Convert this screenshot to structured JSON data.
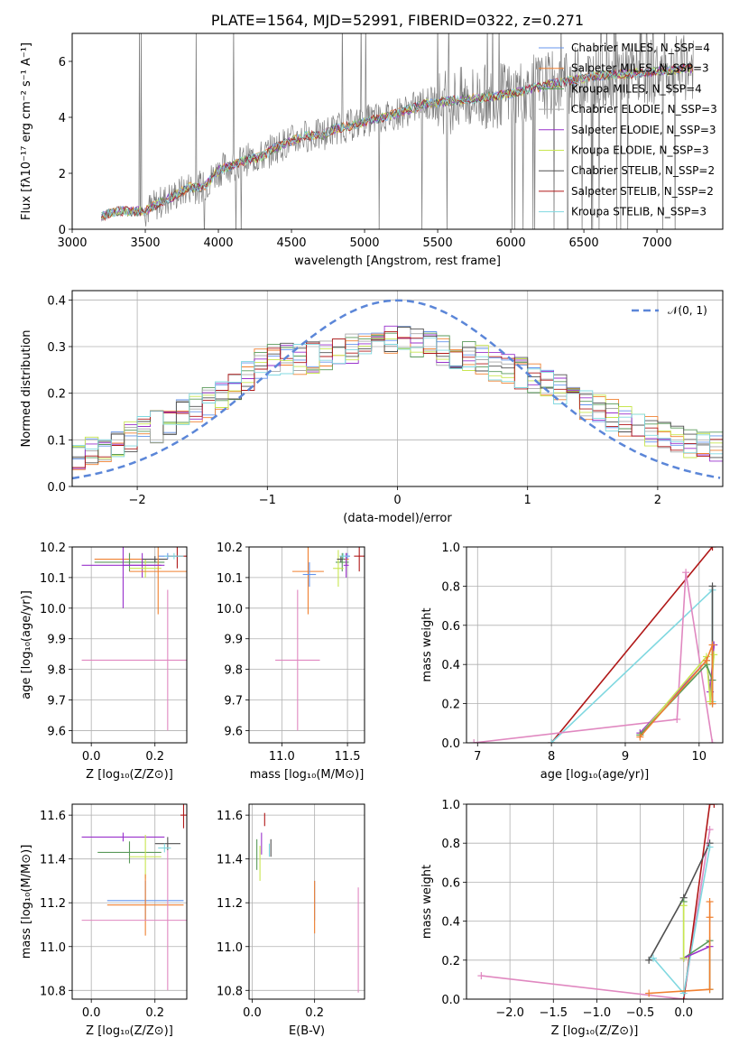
{
  "colors": {
    "Chabrier MILES": "#6495ed",
    "Salpeter MILES": "#f08030",
    "Kroupa MILES": "#5a9a5a",
    "Chabrier ELODIE": "#a9a9a9",
    "Salpeter ELODIE": "#9932cc",
    "Kroupa ELODIE": "#c8e650",
    "Chabrier STELIB": "#505050",
    "Salpeter STELIB": "#b01818",
    "Kroupa STELIB": "#80d8e0",
    "pink": "#e088c0",
    "gauss": "#5b86d8",
    "grid": "#b0b0b0",
    "obs": "#808080"
  },
  "chart_data": [
    {
      "id": "spectrum",
      "type": "line",
      "title": "PLATE=1564, MJD=52991, FIBERID=0322, z=0.271",
      "xlabel": "wavelength [Angstrom, rest frame]",
      "ylabel": "Flux [fλ10⁻¹⁷ erg cm⁻² s⁻¹ A⁻¹]",
      "xlim": [
        3000,
        7450
      ],
      "ylim": [
        0,
        7
      ],
      "xticks": [
        "3000",
        "3500",
        "4000",
        "4500",
        "5000",
        "5500",
        "6000",
        "6500",
        "7000"
      ],
      "yticks": [
        "0",
        "2",
        "4",
        "6"
      ],
      "grid": false,
      "legend_position": "top-right",
      "legend": [
        "Chabrier MILES, N_SSP=4",
        "Salpeter MILES, N_SSP=3",
        "Kroupa MILES, N_SSP=4",
        "Chabrier ELODIE, N_SSP=3",
        "Salpeter ELODIE, N_SSP=3",
        "Kroupa ELODIE, N_SSP=3",
        "Chabrier STELIB, N_SSP=2",
        "Salpeter STELIB, N_SSP=2",
        "Kroupa STELIB, N_SSP=3"
      ],
      "continuum_x": [
        3200,
        3300,
        3500,
        3600,
        3700,
        3800,
        3900,
        4000,
        4100,
        4200,
        4300,
        4400,
        4500,
        4600,
        4700,
        4800,
        4900,
        5000,
        5200,
        5400,
        5600,
        5800,
        6000,
        6200,
        6400,
        6600,
        6800,
        7000,
        7200,
        7250
      ],
      "continuum_y": [
        0.45,
        0.65,
        0.65,
        0.95,
        1.2,
        1.5,
        1.5,
        2.1,
        2.3,
        2.5,
        2.6,
        2.95,
        3.15,
        3.35,
        3.35,
        3.6,
        3.7,
        3.85,
        4.1,
        4.45,
        4.6,
        4.7,
        4.85,
        5.1,
        5.3,
        5.5,
        5.55,
        5.65,
        5.75,
        5.75
      ]
    },
    {
      "id": "residuals",
      "type": "line",
      "xlabel": "(data-model)/error",
      "ylabel": "Normed distribution",
      "xlim": [
        -2.5,
        2.5
      ],
      "ylim": [
        0,
        0.42
      ],
      "xticks": [
        "−2",
        "−1",
        "0",
        "1",
        "2"
      ],
      "yticks": [
        "0.0",
        "0.1",
        "0.2",
        "0.3",
        "0.4"
      ],
      "grid": true,
      "legend_position": "top-right",
      "legend": [
        "𝒩(0, 1)"
      ],
      "gaussian": {
        "mean": 0,
        "sigma": 1
      },
      "hist_x": [
        -2.5,
        -2.0,
        -1.5,
        -1.0,
        -0.5,
        0.0,
        0.5,
        1.0,
        1.5,
        2.0,
        2.5
      ],
      "hist_y": [
        0.06,
        0.11,
        0.17,
        0.27,
        0.28,
        0.32,
        0.28,
        0.24,
        0.17,
        0.11,
        0.08
      ]
    },
    {
      "id": "age-vs-Z",
      "type": "scatter",
      "xlabel": "Z [log₁₀(Z/Z⊙)]",
      "ylabel": "age  [log₁₀(age/yr)]",
      "xlim": [
        -0.06,
        0.3
      ],
      "ylim": [
        9.56,
        10.2
      ],
      "xticks": [
        "0.0",
        "0.2"
      ],
      "yticks": [
        "9.6",
        "9.7",
        "9.8",
        "9.9",
        "10.0",
        "10.1",
        "10.2"
      ],
      "grid": true,
      "points": [
        {
          "c": "Chabrier MILES",
          "x": 0.24,
          "y": 10.17,
          "xe": 0.03,
          "ye": 0.01
        },
        {
          "c": "Salpeter MILES",
          "x": 0.12,
          "y": 10.16,
          "xe": 0.11,
          "ye": 0.02
        },
        {
          "c": "Kroupa MILES",
          "x": 0.12,
          "y": 10.15,
          "xe": 0.11,
          "ye": 0.03
        },
        {
          "c": "Salpeter ELODIE",
          "x": 0.16,
          "y": 10.14,
          "xe": 0.06,
          "ye": 0.04
        },
        {
          "c": "Kroupa ELODIE",
          "x": 0.17,
          "y": 10.13,
          "xe": 0.05,
          "ye": 0.03
        },
        {
          "c": "Chabrier STELIB",
          "x": 0.2,
          "y": 10.16,
          "xe": 0.04,
          "ye": 0.01
        },
        {
          "c": "Salpeter STELIB",
          "x": 0.27,
          "y": 10.17,
          "xe": 0.03,
          "ye": 0.04
        },
        {
          "c": "Kroupa STELIB",
          "x": 0.26,
          "y": 10.17,
          "xe": 0.03,
          "ye": 0.01
        },
        {
          "c": "Salpeter MILES",
          "x": 0.21,
          "y": 10.12,
          "xe": 0.09,
          "ye": 0.14
        },
        {
          "c": "Salpeter ELODIE",
          "x": 0.1,
          "y": 10.14,
          "xe": 0.13,
          "ye": 0.14
        },
        {
          "c": "pink",
          "x": 0.24,
          "y": 9.83,
          "xe": 0.27,
          "ye": 0.23
        }
      ]
    },
    {
      "id": "age-vs-mass",
      "type": "scatter",
      "xlabel": "mass [log₁₀(M/M⊙)]",
      "ylabel": "",
      "xlim": [
        10.75,
        11.63
      ],
      "ylim": [
        9.56,
        10.2
      ],
      "xticks": [
        "11.0",
        "11.5"
      ],
      "yticks": [
        "9.6",
        "9.7",
        "9.8",
        "9.9",
        "10.0",
        "10.1",
        "10.2"
      ],
      "grid": true,
      "points": [
        {
          "c": "Chabrier MILES",
          "x": 11.5,
          "y": 10.17,
          "xe": 0.02,
          "ye": 0.01
        },
        {
          "c": "Salpeter MILES",
          "x": 11.49,
          "y": 10.16,
          "xe": 0.02,
          "ye": 0.02
        },
        {
          "c": "Kroupa MILES",
          "x": 11.46,
          "y": 10.15,
          "xe": 0.05,
          "ye": 0.03
        },
        {
          "c": "Salpeter ELODIE",
          "x": 11.49,
          "y": 10.14,
          "xe": 0.02,
          "ye": 0.04
        },
        {
          "c": "Kroupa ELODIE",
          "x": 11.43,
          "y": 10.13,
          "xe": 0.04,
          "ye": 0.06
        },
        {
          "c": "Chabrier STELIB",
          "x": 11.45,
          "y": 10.16,
          "xe": 0.03,
          "ye": 0.01
        },
        {
          "c": "Salpeter STELIB",
          "x": 11.59,
          "y": 10.17,
          "xe": 0.04,
          "ye": 0.05
        },
        {
          "c": "Kroupa STELIB",
          "x": 11.47,
          "y": 10.17,
          "xe": 0.03,
          "ye": 0.01
        },
        {
          "c": "Salpeter MILES",
          "x": 11.2,
          "y": 10.12,
          "xe": 0.12,
          "ye": 0.14
        },
        {
          "c": "Chabrier MILES",
          "x": 11.21,
          "y": 10.11,
          "xe": 0.05,
          "ye": 0.04
        },
        {
          "c": "pink",
          "x": 11.12,
          "y": 9.83,
          "xe": 0.17,
          "ye": 0.23
        }
      ]
    },
    {
      "id": "weight-vs-age",
      "type": "line",
      "xlabel": "age  [log₁₀(age/yr)]",
      "ylabel": "mass weight",
      "xlim": [
        6.85,
        10.32
      ],
      "ylim": [
        0,
        1.0
      ],
      "xticks": [
        "7",
        "8",
        "9",
        "10"
      ],
      "yticks": [
        "0.0",
        "0.2",
        "0.4",
        "0.6",
        "0.8",
        "1.0"
      ],
      "grid": true,
      "series": [
        {
          "c": "Salpeter STELIB",
          "x": [
            8.0,
            10.18
          ],
          "y": [
            0.0,
            1.0
          ]
        },
        {
          "c": "Kroupa STELIB",
          "x": [
            8.0,
            10.18,
            10.18
          ],
          "y": [
            0.0,
            0.78,
            0.21
          ]
        },
        {
          "c": "pink",
          "x": [
            6.95,
            9.7,
            9.82,
            10.18
          ],
          "y": [
            0.0,
            0.12,
            0.87,
            0.0
          ]
        },
        {
          "c": "Salpeter ELODIE",
          "x": [
            9.2,
            10.1,
            10.15,
            10.2
          ],
          "y": [
            0.05,
            0.42,
            0.26,
            0.5
          ]
        },
        {
          "c": "Kroupa ELODIE",
          "x": [
            9.2,
            10.1,
            10.15,
            10.2
          ],
          "y": [
            0.04,
            0.44,
            0.21,
            0.45
          ]
        },
        {
          "c": "Kroupa MILES",
          "x": [
            9.2,
            10.1,
            10.18
          ],
          "y": [
            0.04,
            0.4,
            0.32
          ]
        },
        {
          "c": "Chabrier STELIB",
          "x": [
            10.18,
            10.18
          ],
          "y": [
            0.2,
            0.8
          ]
        },
        {
          "c": "Salpeter MILES",
          "x": [
            9.2,
            10.1,
            10.18,
            10.18
          ],
          "y": [
            0.03,
            0.42,
            0.5,
            0.2
          ]
        }
      ]
    },
    {
      "id": "mass-vs-Z",
      "type": "scatter",
      "xlabel": "Z [log₁₀(Z/Z⊙)]",
      "ylabel": "mass [log₁₀(M/M⊙)]",
      "xlim": [
        -0.06,
        0.3
      ],
      "ylim": [
        10.76,
        11.65
      ],
      "xticks": [
        "0.0",
        "0.2"
      ],
      "yticks": [
        "10.8",
        "11.0",
        "11.2",
        "11.4",
        "11.6"
      ],
      "grid": true,
      "points": [
        {
          "c": "Salpeter STELIB",
          "x": 0.29,
          "y": 11.6,
          "xe": 0.01,
          "ye": 0.06
        },
        {
          "c": "Salpeter ELODIE",
          "x": 0.1,
          "y": 11.5,
          "xe": 0.13,
          "ye": 0.02
        },
        {
          "c": "Chabrier STELIB",
          "x": 0.24,
          "y": 11.47,
          "xe": 0.04,
          "ye": 0.03
        },
        {
          "c": "Kroupa STELIB",
          "x": 0.23,
          "y": 11.45,
          "xe": 0.02,
          "ye": 0.02
        },
        {
          "c": "Kroupa MILES",
          "x": 0.12,
          "y": 11.43,
          "xe": 0.1,
          "ye": 0.05
        },
        {
          "c": "Kroupa ELODIE",
          "x": 0.17,
          "y": 11.41,
          "xe": 0.05,
          "ye": 0.1
        },
        {
          "c": "Chabrier MILES",
          "x": 0.17,
          "y": 11.21,
          "xe": 0.12,
          "ye": 0.09
        },
        {
          "c": "Salpeter MILES",
          "x": 0.17,
          "y": 11.19,
          "xe": 0.12,
          "ye": 0.14
        },
        {
          "c": "pink",
          "x": 0.24,
          "y": 11.12,
          "xe": 0.27,
          "ye": 0.32
        }
      ]
    },
    {
      "id": "mass-vs-EBV",
      "type": "scatter",
      "xlabel": "E(B-V)",
      "ylabel": "",
      "xlim": [
        -0.01,
        0.36
      ],
      "ylim": [
        10.76,
        11.65
      ],
      "xticks": [
        "0.0",
        "0.2"
      ],
      "yticks": [
        "10.8",
        "11.0",
        "11.2",
        "11.4",
        "11.6"
      ],
      "grid": true,
      "points": [
        {
          "c": "Salpeter STELIB",
          "x": 0.04,
          "y": 11.58,
          "xe": 0.0,
          "ye": 0.03
        },
        {
          "c": "Salpeter ELODIE",
          "x": 0.03,
          "y": 11.47,
          "xe": 0.0,
          "ye": 0.05
        },
        {
          "c": "Chabrier STELIB",
          "x": 0.06,
          "y": 11.45,
          "xe": 0.0,
          "ye": 0.04
        },
        {
          "c": "Kroupa STELIB",
          "x": 0.055,
          "y": 11.44,
          "xe": 0.0,
          "ye": 0.03
        },
        {
          "c": "Kroupa MILES",
          "x": 0.015,
          "y": 11.42,
          "xe": 0.0,
          "ye": 0.07
        },
        {
          "c": "Kroupa ELODIE",
          "x": 0.025,
          "y": 11.38,
          "xe": 0.0,
          "ye": 0.08
        },
        {
          "c": "Chabrier MILES",
          "x": 0.2,
          "y": 11.21,
          "xe": 0.0,
          "ye": 0.09
        },
        {
          "c": "Salpeter MILES",
          "x": 0.2,
          "y": 11.18,
          "xe": 0.0,
          "ye": 0.12
        },
        {
          "c": "pink",
          "x": 0.34,
          "y": 11.03,
          "xe": 0.0,
          "ye": 0.24
        }
      ]
    },
    {
      "id": "weight-vs-Z",
      "type": "line",
      "xlabel": "Z [log₁₀(Z/Z⊙)]",
      "ylabel": "mass weight",
      "xlim": [
        -2.5,
        0.45
      ],
      "ylim": [
        0,
        1.0
      ],
      "xticks": [
        "−2.0",
        "−1.5",
        "−1.0",
        "−0.5",
        "0.0"
      ],
      "yticks": [
        "0.0",
        "0.2",
        "0.4",
        "0.6",
        "0.8",
        "1.0"
      ],
      "grid": true,
      "series": [
        {
          "c": "pink",
          "x": [
            -2.33,
            0.0,
            0.3
          ],
          "y": [
            0.12,
            0.0,
            0.87
          ]
        },
        {
          "c": "Salpeter STELIB",
          "x": [
            0.0,
            0.3,
            0.35
          ],
          "y": [
            0.0,
            1.0,
            1.0
          ]
        },
        {
          "c": "Chabrier STELIB",
          "x": [
            -0.4,
            0.0,
            0.3
          ],
          "y": [
            0.2,
            0.52,
            0.8
          ]
        },
        {
          "c": "Kroupa STELIB",
          "x": [
            -0.35,
            0.0,
            0.3
          ],
          "y": [
            0.21,
            0.03,
            0.78
          ]
        },
        {
          "c": "Kroupa MILES",
          "x": [
            0.0,
            0.0,
            0.3,
            0.3
          ],
          "y": [
            0.5,
            0.21,
            0.3,
            0.05
          ]
        },
        {
          "c": "Salpeter ELODIE",
          "x": [
            0.0,
            0.3
          ],
          "y": [
            0.21,
            0.27
          ]
        },
        {
          "c": "Kroupa ELODIE",
          "x": [
            0.0,
            0.0
          ],
          "y": [
            0.48,
            0.21
          ]
        },
        {
          "c": "Salpeter MILES",
          "x": [
            -0.4,
            0.3,
            0.3,
            0.3
          ],
          "y": [
            0.03,
            0.05,
            0.5,
            0.42
          ]
        }
      ]
    }
  ]
}
